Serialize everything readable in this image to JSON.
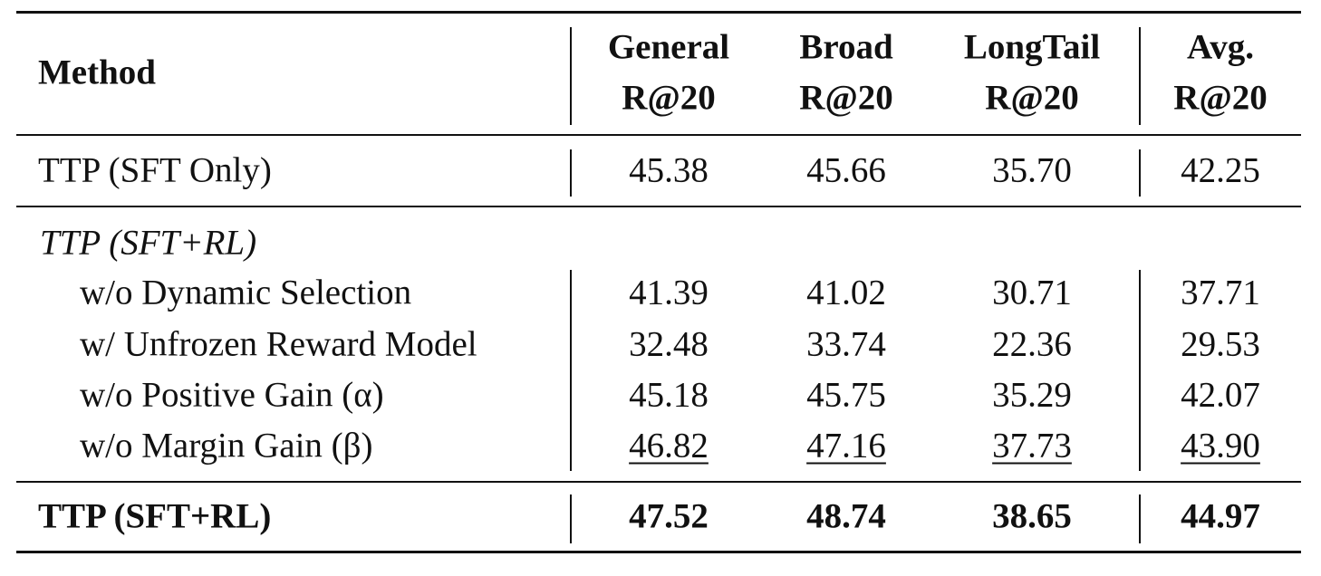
{
  "table": {
    "header": {
      "method": "Method",
      "columns": [
        [
          "General",
          "R@20"
        ],
        [
          "Broad",
          "R@20"
        ],
        [
          "LongTail",
          "R@20"
        ],
        [
          "Avg.",
          "R@20"
        ]
      ]
    },
    "baseline": {
      "method": "TTP (SFT Only)",
      "values": [
        "45.38",
        "45.66",
        "35.70",
        "42.25"
      ]
    },
    "group": {
      "label": "TTP (SFT+RL)",
      "rows": [
        {
          "method": "w/o Dynamic Selection",
          "values": [
            "41.39",
            "41.02",
            "30.71",
            "37.71"
          ]
        },
        {
          "method": "w/ Unfrozen Reward Model",
          "values": [
            "32.48",
            "33.74",
            "22.36",
            "29.53"
          ]
        },
        {
          "method": "w/o Positive Gain (α)",
          "values": [
            "45.18",
            "45.75",
            "35.29",
            "42.07"
          ]
        },
        {
          "method": "w/o Margin Gain (β)",
          "values": [
            "46.82",
            "47.16",
            "37.73",
            "43.90"
          ]
        }
      ]
    },
    "final": {
      "method": "TTP (SFT+RL)",
      "values": [
        "47.52",
        "48.74",
        "38.65",
        "44.97"
      ]
    }
  }
}
